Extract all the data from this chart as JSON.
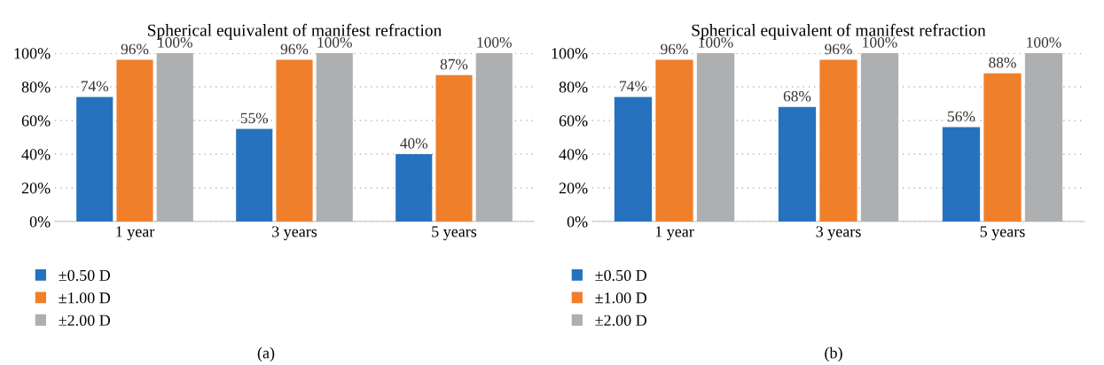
{
  "chart_data": [
    {
      "type": "bar",
      "title": "Spherical equivalent of manifest refraction",
      "categories": [
        "1 year",
        "3 years",
        "5 years"
      ],
      "series": [
        {
          "name": "±0.50 D",
          "color": "#2672be",
          "values": [
            74,
            55,
            40
          ],
          "value_labels": [
            "74%",
            "55%",
            "40%"
          ]
        },
        {
          "name": "±1.00 D",
          "color": "#f07f2b",
          "values": [
            96,
            96,
            87
          ],
          "value_labels": [
            "96%",
            "96%",
            "87%"
          ]
        },
        {
          "name": "±2.00 D",
          "color": "#aeafb1",
          "values": [
            100,
            100,
            100
          ],
          "value_labels": [
            "100%",
            "100%",
            "100%"
          ]
        }
      ],
      "ylim": [
        0,
        100
      ],
      "yticks": [
        {
          "value": 0,
          "label": "0%"
        },
        {
          "value": 20,
          "label": "20%"
        },
        {
          "value": 40,
          "label": "40%"
        },
        {
          "value": 60,
          "label": "60%"
        },
        {
          "value": 80,
          "label": "80%"
        },
        {
          "value": 100,
          "label": "100%"
        }
      ],
      "grid": "y",
      "legend": "bottom left",
      "annotations": [
        "(a)"
      ]
    },
    {
      "type": "bar",
      "title": "Spherical equivalent of manifest refraction",
      "categories": [
        "1 year",
        "3 years",
        "5 years"
      ],
      "series": [
        {
          "name": "±0.50 D",
          "color": "#2672be",
          "values": [
            74,
            68,
            56
          ],
          "value_labels": [
            "74%",
            "68%",
            "56%"
          ]
        },
        {
          "name": "±1.00 D",
          "color": "#f07f2b",
          "values": [
            96,
            96,
            88
          ],
          "value_labels": [
            "96%",
            "96%",
            "88%"
          ]
        },
        {
          "name": "±2.00 D",
          "color": "#aeafb1",
          "values": [
            100,
            100,
            100
          ],
          "value_labels": [
            "100%",
            "100%",
            "100%"
          ]
        }
      ],
      "ylim": [
        0,
        100
      ],
      "yticks": [
        {
          "value": 0,
          "label": "0%"
        },
        {
          "value": 20,
          "label": "20%"
        },
        {
          "value": 40,
          "label": "40%"
        },
        {
          "value": 60,
          "label": "60%"
        },
        {
          "value": 80,
          "label": "80%"
        },
        {
          "value": 100,
          "label": "100%"
        }
      ],
      "grid": "y",
      "legend": "bottom left",
      "annotations": [
        "(b)"
      ]
    }
  ]
}
